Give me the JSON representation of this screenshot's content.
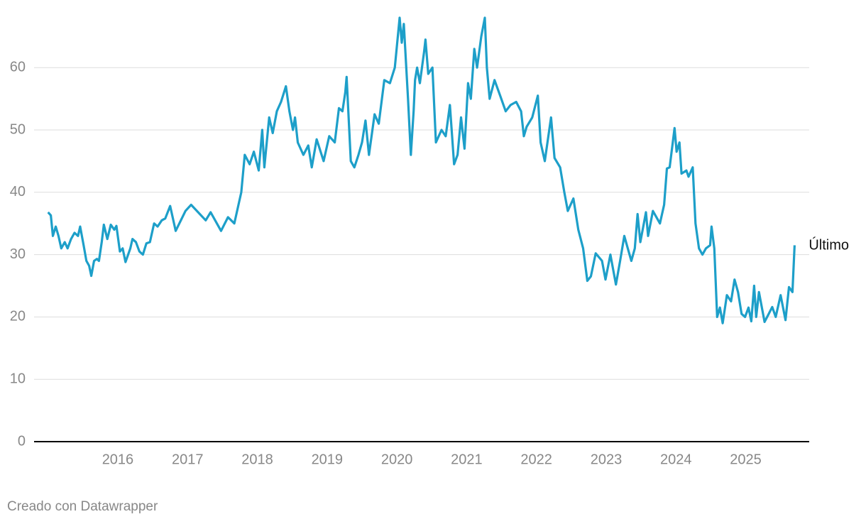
{
  "chart_data": {
    "type": "line",
    "x": [
      2015.0,
      2015.04,
      2015.07,
      2015.11,
      2015.15,
      2015.19,
      2015.24,
      2015.28,
      2015.33,
      2015.38,
      2015.43,
      2015.46,
      2015.51,
      2015.55,
      2015.59,
      2015.62,
      2015.66,
      2015.7,
      2015.73,
      2015.77,
      2015.8,
      2015.85,
      2015.9,
      2015.95,
      2015.98,
      2016.03,
      2016.07,
      2016.11,
      2016.18,
      2016.21,
      2016.26,
      2016.31,
      2016.36,
      2016.41,
      2016.46,
      2016.52,
      2016.57,
      2016.63,
      2016.68,
      2016.75,
      2016.83,
      2016.97,
      2017.05,
      2017.26,
      2017.33,
      2017.48,
      2017.58,
      2017.67,
      2017.77,
      2017.82,
      2017.89,
      2017.95,
      2018.02,
      2018.07,
      2018.1,
      2018.17,
      2018.22,
      2018.28,
      2018.34,
      2018.41,
      2018.46,
      2018.51,
      2018.54,
      2018.58,
      2018.66,
      2018.73,
      2018.78,
      2018.85,
      2018.95,
      2019.03,
      2019.11,
      2019.17,
      2019.22,
      2019.26,
      2019.28,
      2019.34,
      2019.39,
      2019.45,
      2019.5,
      2019.55,
      2019.6,
      2019.68,
      2019.74,
      2019.82,
      2019.9,
      2019.97,
      2020.04,
      2020.07,
      2020.1,
      2020.16,
      2020.2,
      2020.24,
      2020.26,
      2020.29,
      2020.33,
      2020.39,
      2020.41,
      2020.45,
      2020.51,
      2020.56,
      2020.64,
      2020.7,
      2020.76,
      2020.82,
      2020.87,
      2020.92,
      2020.97,
      2021.02,
      2021.06,
      2021.11,
      2021.15,
      2021.21,
      2021.26,
      2021.29,
      2021.33,
      2021.4,
      2021.48,
      2021.56,
      2021.63,
      2021.71,
      2021.78,
      2021.82,
      2021.86,
      2021.94,
      2022.02,
      2022.06,
      2022.12,
      2022.21,
      2022.26,
      2022.34,
      2022.4,
      2022.45,
      2022.53,
      2022.6,
      2022.67,
      2022.73,
      2022.78,
      2022.85,
      2022.94,
      2022.99,
      2023.06,
      2023.14,
      2023.2,
      2023.26,
      2023.31,
      2023.36,
      2023.41,
      2023.45,
      2023.49,
      2023.57,
      2023.6,
      2023.67,
      2023.77,
      2023.83,
      2023.87,
      2023.91,
      2023.98,
      2024.01,
      2024.05,
      2024.08,
      2024.15,
      2024.18,
      2024.24,
      2024.28,
      2024.33,
      2024.38,
      2024.43,
      2024.49,
      2024.51,
      2024.55,
      2024.59,
      2024.63,
      2024.67,
      2024.73,
      2024.79,
      2024.84,
      2024.89,
      2024.94,
      2024.99,
      2025.04,
      2025.08,
      2025.12,
      2025.15,
      2025.19,
      2025.27,
      2025.33,
      2025.38,
      2025.43,
      2025.5,
      2025.57,
      2025.62,
      2025.67,
      2025.7
    ],
    "series": [
      {
        "name": "Último",
        "color": "#1d9fc9",
        "values": [
          36.8,
          36.3,
          33,
          34.5,
          33,
          31,
          32,
          31,
          32.5,
          33.5,
          33,
          34.5,
          31.5,
          29,
          28.2,
          26.6,
          29,
          29.3,
          29,
          32,
          34.8,
          32.5,
          34.8,
          34,
          34.6,
          30.5,
          31,
          28.8,
          31,
          32.5,
          32,
          30.5,
          30,
          31.8,
          32,
          35,
          34.5,
          35.5,
          35.8,
          37.8,
          33.8,
          37,
          38,
          35.5,
          36.8,
          33.8,
          36,
          35,
          40,
          46,
          44.5,
          46.5,
          43.5,
          50,
          44,
          52,
          49.5,
          53,
          54.5,
          57,
          53,
          50,
          52,
          48,
          46,
          47.5,
          44,
          48.5,
          45,
          49,
          48,
          53.5,
          53,
          56,
          58.5,
          45,
          44,
          46,
          48,
          51.5,
          46,
          52.5,
          51,
          58,
          57.5,
          60,
          68,
          64,
          67,
          55,
          46,
          53,
          58,
          60,
          57.5,
          62.5,
          64.5,
          59,
          60,
          48,
          50,
          49,
          54,
          44.5,
          46,
          52,
          47,
          57.5,
          55,
          63,
          60,
          65,
          68,
          60,
          55,
          58,
          55.5,
          53,
          54,
          54.5,
          53,
          49,
          50.5,
          52,
          55.5,
          48,
          45,
          52,
          45.5,
          44,
          40,
          37,
          39,
          34,
          31,
          25.8,
          26.5,
          30.2,
          29,
          26,
          30,
          25.2,
          29,
          33,
          31,
          29,
          31,
          36.5,
          32,
          36.8,
          33,
          37,
          35,
          38,
          43.8,
          44,
          50.3,
          46.5,
          48,
          43,
          43.5,
          42.5,
          44,
          35,
          31,
          30,
          31,
          31.5,
          34.5,
          31,
          20,
          21.5,
          19,
          23.5,
          22.5,
          26,
          24,
          20.5,
          20,
          21.5,
          19.3,
          25,
          20,
          24,
          19.2,
          20.5,
          21.6,
          20,
          23.5,
          19.5,
          24.8,
          24,
          31.5
        ]
      }
    ],
    "xlim": [
      2014.8,
      2025.91
    ],
    "xticks": [
      2016,
      2017,
      2018,
      2019,
      2020,
      2021,
      2022,
      2023,
      2024,
      2025
    ],
    "ylim": [
      0,
      70
    ],
    "yticks": [
      0,
      10,
      20,
      30,
      40,
      50,
      60
    ],
    "grid": true,
    "credit": "Creado con Datawrapper"
  }
}
